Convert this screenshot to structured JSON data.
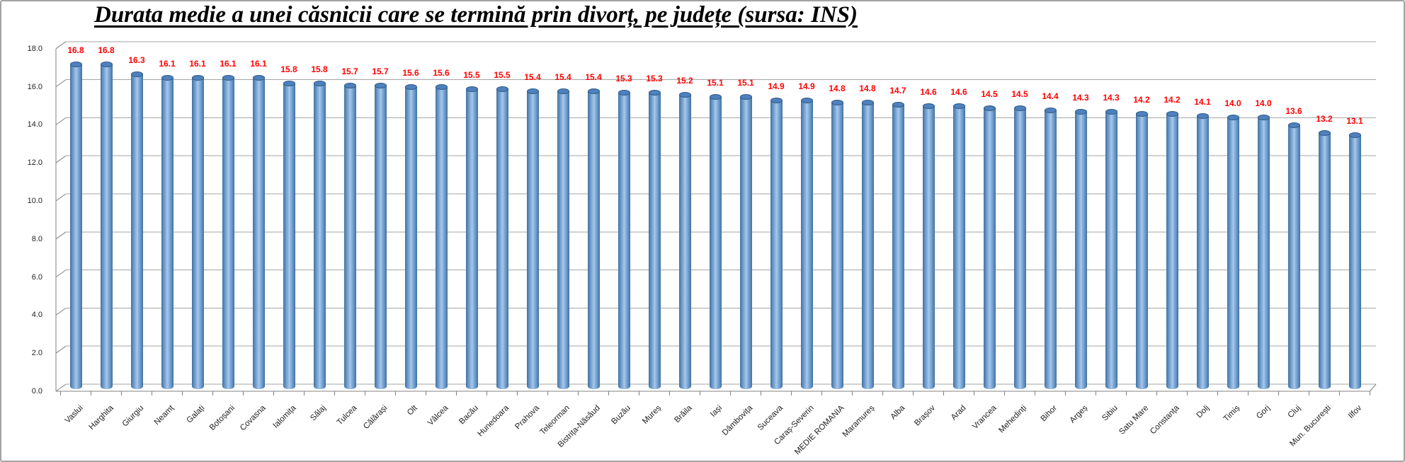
{
  "window": {
    "background": "#FFFFFF",
    "frame_border_color": "#A3A3A3"
  },
  "chart_data": {
    "type": "bar",
    "style": "3d-cylinder-column",
    "title": "Durata medie a unei căsnicii care se termină prin divorț, pe județe (sursa: INS)",
    "categories": [
      "Vaslui",
      "Harghita",
      "Giurgiu",
      "Neamț",
      "Galați",
      "Botoșani",
      "Covasna",
      "Ialomița",
      "Sălaj",
      "Tulcea",
      "Călărași",
      "Olt",
      "Vâlcea",
      "Bacău",
      "Hunedoara",
      "Prahova",
      "Teleorman",
      "Bistrița-Năsăud",
      "Buzău",
      "Mureș",
      "Brăila",
      "Iași",
      "Dâmbovița",
      "Suceava",
      "Caraș-Severin",
      "MEDIE ROMANIA",
      "Maramureș",
      "Alba",
      "Brașov",
      "Arad",
      "Vrancea",
      "Mehedinți",
      "Bihor",
      "Argeș",
      "Sibiu",
      "Satu Mare",
      "Constanța",
      "Dolj",
      "Timiș",
      "Gorj",
      "Cluj",
      "Mun. București",
      "Ilfov"
    ],
    "values": [
      16.8,
      16.8,
      16.3,
      16.1,
      16.1,
      16.1,
      16.1,
      15.8,
      15.8,
      15.7,
      15.7,
      15.6,
      15.6,
      15.5,
      15.5,
      15.4,
      15.4,
      15.4,
      15.3,
      15.3,
      15.2,
      15.1,
      15.1,
      14.9,
      14.9,
      14.8,
      14.8,
      14.7,
      14.6,
      14.6,
      14.5,
      14.5,
      14.4,
      14.3,
      14.3,
      14.2,
      14.2,
      14.1,
      14.0,
      14.0,
      13.6,
      13.2,
      13.1
    ],
    "y_tick_labels": [
      "0.0",
      "2.0",
      "4.0",
      "6.0",
      "8.0",
      "10.0",
      "12.0",
      "14.0",
      "16.0",
      "18.0"
    ],
    "ylim": [
      0,
      18
    ],
    "y_tick_interval": 2,
    "xlabel": "",
    "ylabel": "",
    "grid": true,
    "legend": "none",
    "data_label_color": "#FF0000",
    "data_label_format": "one-decimal",
    "bar_fill_color": "#7EA7D3",
    "bar_edge_color": "#41719C",
    "gridline_color": "#A6A6A6",
    "axis_line_color": "#808080",
    "axis_text_color": "#1F1F1F",
    "x_label_rotation_deg": -45
  }
}
